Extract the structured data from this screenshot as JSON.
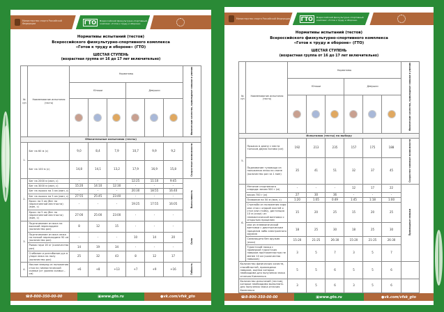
{
  "colors": {
    "green": "#2a8a36",
    "brown": "#b0673a",
    "bronze": "#c8a090",
    "silver": "#a8b8d8",
    "gold": "#e0a860"
  },
  "header": {
    "ministry": "Министерство спорта Российской Федерации",
    "gto_logo": "ГТО",
    "complex": "Всероссийский физкультурно-спортивный комплекс «Готов к труду и обороне»"
  },
  "title": {
    "line1": "Нормативы испытаний (тестов)",
    "line2": "Всероссийского физкультурно-спортивного комплекса",
    "line3": "«Готов к труду и обороне» (ГТО)",
    "stage": "ШЕСТАЯ СТУПЕНЬ",
    "age": "(возрастная группа от 16 до 17 лет включительно)"
  },
  "table_header": {
    "num": "№ п/п",
    "name": "Наименование испытания (теста)",
    "norms": "Нормативы",
    "boys": "Юноши",
    "girls": "Девушки",
    "qualities": "Физические качества, прикладные навыки и умения",
    "medals": [
      "bronze",
      "silver",
      "gold",
      "bronze",
      "silver",
      "gold"
    ]
  },
  "page1": {
    "section": "Обязательные испытания (тесты)",
    "groups": [
      {
        "num": "1.",
        "cat": "Скоростные возможности",
        "rows": [
          {
            "name": "Бег на 60 м (с)",
            "v": [
              "9,0",
              "8,4",
              "7,9",
              "10,7",
              "9,9",
              "9,2"
            ]
          },
          {
            "name": "Бег на 100 м (с)",
            "v": [
              "14,8",
              "14,1",
              "13,2",
              "17,9",
              "16,9",
              "15,8"
            ]
          }
        ]
      },
      {
        "num": "2.",
        "cat": "Выносливость",
        "rows": [
          {
            "name": "Бег на 2000 м (мин, с)",
            "v": [
              "-",
              "-",
              "-",
              "12:25",
              "11:10",
              "9:45"
            ]
          },
          {
            "name": "Бег на 3000 м (мин, с)",
            "v": [
              "15:20",
              "14:10",
              "12:30",
              "-",
              "-",
              "-"
            ]
          },
          {
            "name": "Бег на лыжах на 3 км (мин, с)",
            "v": [
              "-",
              "-",
              "-",
              "20:30",
              "18:55",
              "16:40"
            ]
          },
          {
            "name": "Бег на лыжах на 5 км (мин, с)",
            "v": [
              "27:55",
              "25:45",
              "23:40",
              "-",
              "-",
              "-"
            ]
          },
          {
            "name": "Кросс на 3 км (бег по пересеченной местности) (мин, с)",
            "v": [
              "-",
              "-",
              "-",
              "19:25",
              "17:55",
              "16:05"
            ]
          },
          {
            "name": "Кросс на 5 км (бег по пересеченной местности) (мин, с)",
            "v": [
              "27:00",
              "25:00",
              "23:00",
              "-",
              "-",
              "-"
            ]
          }
        ]
      },
      {
        "num": "3.",
        "cat": "Сила",
        "rows": [
          {
            "name": "Подтягивание из виса на высокой перекладине (количество раз)",
            "v": [
              "8",
              "12",
              "15",
              "-",
              "-",
              "-"
            ]
          },
          {
            "name": "Подтягивание из виса лежа на низкой перекладине 90 см (количество раз)",
            "v": [
              "-",
              "-",
              "-",
              "10",
              "14",
              "20"
            ]
          },
          {
            "name": "Рывок гири 16 кг (количество раз)",
            "v": [
              "14",
              "19",
              "34",
              "-",
              "-",
              "-"
            ]
          },
          {
            "name": "Сгибание и разгибание рук в упоре лежа на полу (количество раз)",
            "v": [
              "25",
              "32",
              "43",
              "8",
              "12",
              "17"
            ]
          }
        ]
      },
      {
        "num": "4.",
        "cat": "Гибкость",
        "rows": [
          {
            "name": "Наклон вперед из положения стоя на гимнастической скамье (от уровня скамьи – см)",
            "v": [
              "+6",
              "+8",
              "+13",
              "+7",
              "+9",
              "+16"
            ]
          }
        ]
      }
    ]
  },
  "page2": {
    "section": "Испытания (тесты) по выбору",
    "groups": [
      {
        "num": "5.",
        "cat": "Скоростно-силовые возможности",
        "rows": [
          {
            "name": "Прыжок в длину с места толчком двумя ногами (см)",
            "v": [
              "192",
              "213",
              "235",
              "157",
              "175",
              "188"
            ]
          },
          {
            "name": "Поднимание туловища из положения лежа на спине (количество раз за 1 мин)",
            "v": [
              "35",
              "41",
              "51",
              "32",
              "37",
              "45"
            ]
          }
        ]
      },
      {
        "num": "6.",
        "cat": "Прикладные навыки",
        "rows": [
          {
            "name": "Метание спортивного снаряда: весом 500 г (м)",
            "v": [
              "-",
              "-",
              "-",
              "12",
              "17",
              "22"
            ]
          },
          {
            "name": "весом 700 г (м)",
            "v": [
              "27",
              "30",
              "36",
              "-",
              "-",
              "-"
            ]
          },
          {
            "name": "Плавание на 50 м (мин, с)",
            "v": [
              "1:20",
              "1:05",
              "0:49",
              "1:45",
              "1:18",
              "1:00"
            ]
          },
          {
            "name": "Стрельба из положения сидя или стоя с опорой локтей о стол или стойку, дистанция 10 м (очки): из пневматической винтовки с открытым прицелом",
            "v": [
              "15",
              "20",
              "25",
              "15",
              "20",
              "25"
            ]
          },
          {
            "name": "или из пневматической винтовки с диоптрическим прицелом либо электронного оружия",
            "v": [
              "18",
              "25",
              "30",
              "18",
              "25",
              "30"
            ]
          },
          {
            "name": "Самозащита без оружия (очки)",
            "v": [
              "15-20",
              "21-25",
              "26-30",
              "15-20",
              "21-25",
              "26-30"
            ]
          },
          {
            "name": "Туристский поход с проверкой туристских навыков протяженностью не менее 10 км (количество навыков)",
            "v": [
              "3",
              "5",
              "7",
              "3",
              "5",
              "7"
            ]
          }
        ]
      }
    ],
    "totals": [
      {
        "name": "Количество физических качеств, способностей, прикладных навыков, оценка которых необходима для получения знака отличия Комплекса",
        "v": [
          "5",
          "5",
          "6",
          "5",
          "5",
          "6"
        ]
      },
      {
        "name": "Количество испытаний (тестов), которые необходимо выполнить для получения знака отличия Комплекса",
        "v": [
          "3",
          "5",
          "6",
          "3",
          "5",
          "6"
        ]
      }
    ]
  },
  "footer": {
    "phone": "8-800-350-00-00",
    "site": "www.gto.ru",
    "vk": "vk.com/vfsk_gto"
  }
}
